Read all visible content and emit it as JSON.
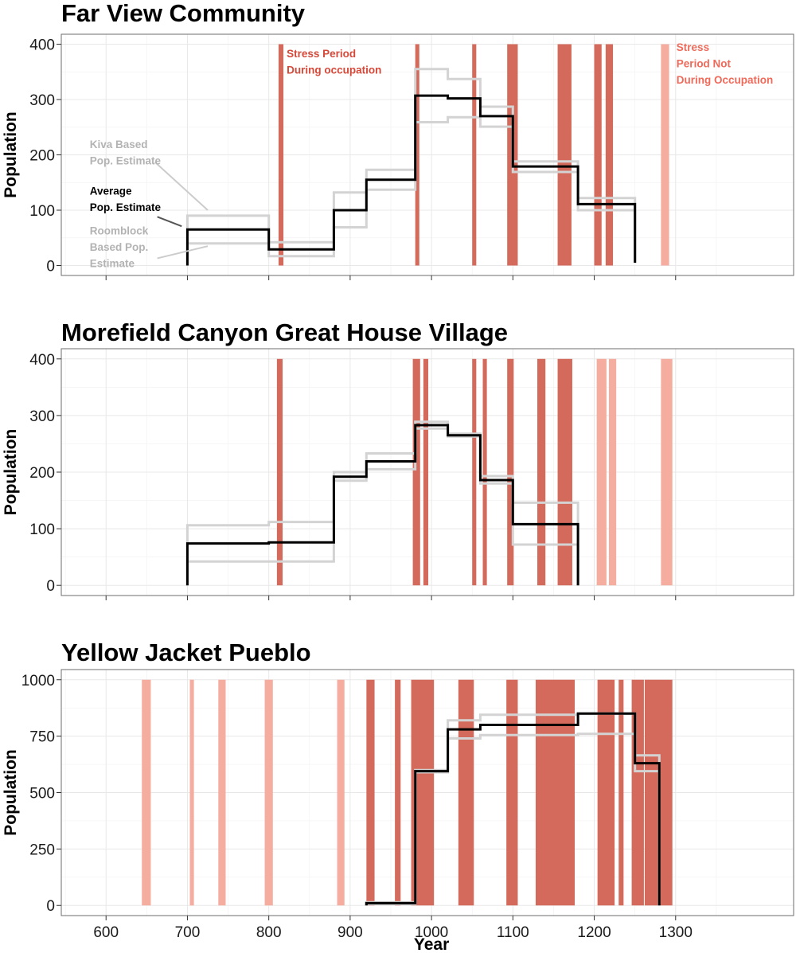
{
  "chart_data": {
    "type": "line",
    "xlabel": "Year",
    "x_ticks": [
      600,
      700,
      800,
      900,
      1000,
      1100,
      1200,
      1300
    ],
    "xlim": [
      545,
      1445
    ],
    "colors": {
      "average": "#000000",
      "estimate": "#d3d3d3",
      "stress_during": "#d46a5b",
      "stress_not": "#f4ad9e",
      "annotation_during": "#d6493a",
      "annotation_not": "#ee6a5a",
      "annotation_gray": "#b3b3b3"
    },
    "panels": [
      {
        "title": "Far View Community",
        "ylabel": "Population",
        "ylim": [
          -18,
          418
        ],
        "yticks": [
          0,
          100,
          200,
          300,
          400
        ],
        "stress_during": [
          [
            812,
            818
          ],
          [
            980,
            985
          ],
          [
            1050,
            1055
          ],
          [
            1093,
            1106
          ],
          [
            1155,
            1172
          ],
          [
            1200,
            1209
          ],
          [
            1214,
            1223
          ]
        ],
        "stress_not": [
          [
            1282,
            1292
          ]
        ],
        "series": [
          {
            "role": "average",
            "x": [
              700,
              700,
              800,
              800,
              880,
              880,
              920,
              920,
              980,
              980,
              1020,
              1020,
              1060,
              1060,
              1100,
              1100,
              1180,
              1180,
              1250,
              1250
            ],
            "y": [
              0,
              65,
              65,
              29,
              29,
              100,
              100,
              155,
              155,
              307,
              307,
              302,
              302,
              270,
              270,
              179,
              179,
              111,
              111,
              5
            ]
          },
          {
            "role": "kiva",
            "x": [
              700,
              700,
              800,
              800,
              880,
              880,
              920,
              920,
              980,
              980,
              1020,
              1020,
              1060,
              1060,
              1100,
              1100,
              1180,
              1180,
              1250,
              1250
            ],
            "y": [
              0,
              90,
              90,
              42,
              42,
              132,
              132,
              173,
              173,
              355,
              355,
              337,
              337,
              287,
              287,
              188,
              188,
              122,
              122,
              5
            ]
          },
          {
            "role": "roomblock",
            "x": [
              700,
              700,
              800,
              800,
              880,
              880,
              920,
              920,
              980,
              980,
              1020,
              1020,
              1060,
              1060,
              1100,
              1100,
              1180,
              1180,
              1250,
              1250
            ],
            "y": [
              0,
              40,
              40,
              17,
              17,
              69,
              69,
              137,
              137,
              259,
              259,
              268,
              268,
              251,
              251,
              169,
              169,
              100,
              100,
              5
            ]
          }
        ],
        "annotations": [
          {
            "lines": [
              "Stress Period",
              "During occupation"
            ],
            "kind": "during",
            "x": 822,
            "y": 376
          },
          {
            "lines": [
              "Stress",
              "Period Not",
              "During Occupation"
            ],
            "kind": "not",
            "x": 1301,
            "y": 388
          },
          {
            "lines": [
              "Kiva Based",
              "Pop. Estimate"
            ],
            "kind": "gray",
            "x": 580,
            "y": 212
          },
          {
            "lines": [
              "Average",
              "Pop. Estimate"
            ],
            "kind": "black",
            "x": 580,
            "y": 128
          },
          {
            "lines": [
              "Roomblock",
              "Based Pop.",
              "Estimate"
            ],
            "kind": "gray",
            "x": 580,
            "y": 56
          }
        ],
        "leaders": [
          {
            "kind": "gray",
            "from": [
              660,
              187
            ],
            "to": [
              725,
              100
            ]
          },
          {
            "kind": "black",
            "from": [
              663,
              88
            ],
            "to": [
              693,
              71
            ]
          },
          {
            "kind": "gray",
            "from": [
              663,
              13
            ],
            "to": [
              725,
              35
            ]
          }
        ]
      },
      {
        "title": "Morefield Canyon Great House Village",
        "ylabel": "Population",
        "ylim": [
          -18,
          418
        ],
        "yticks": [
          0,
          100,
          200,
          300,
          400
        ],
        "stress_during": [
          [
            810,
            817
          ],
          [
            977,
            986
          ],
          [
            990,
            996
          ],
          [
            1050,
            1055
          ],
          [
            1063,
            1068
          ],
          [
            1093,
            1101
          ],
          [
            1130,
            1140
          ],
          [
            1155,
            1173
          ]
        ],
        "stress_not": [
          [
            1203,
            1215
          ],
          [
            1218,
            1227
          ],
          [
            1282,
            1296
          ]
        ],
        "series": [
          {
            "role": "average",
            "x": [
              700,
              700,
              800,
              800,
              880,
              880,
              920,
              920,
              980,
              980,
              1020,
              1020,
              1060,
              1060,
              1100,
              1100,
              1180,
              1180
            ],
            "y": [
              0,
              74,
              74,
              76,
              76,
              192,
              192,
              219,
              219,
              283,
              283,
              265,
              265,
              186,
              186,
              108,
              108,
              0
            ]
          },
          {
            "role": "kiva",
            "x": [
              700,
              700,
              800,
              800,
              880,
              880,
              920,
              920,
              980,
              980,
              1020,
              1020,
              1060,
              1060,
              1100,
              1100,
              1180,
              1180
            ],
            "y": [
              0,
              106,
              106,
              112,
              112,
              200,
              200,
              233,
              233,
              289,
              289,
              268,
              268,
              193,
              193,
              146,
              146,
              0
            ]
          },
          {
            "role": "roomblock",
            "x": [
              700,
              700,
              800,
              800,
              880,
              880,
              920,
              920,
              980,
              980,
              1020,
              1020,
              1060,
              1060,
              1100,
              1100,
              1180,
              1180
            ],
            "y": [
              0,
              42,
              42,
              42,
              42,
              185,
              185,
              205,
              205,
              277,
              277,
              263,
              263,
              180,
              180,
              72,
              72,
              0
            ]
          }
        ],
        "annotations": [],
        "leaders": []
      },
      {
        "title": "Yellow Jacket Pueblo",
        "ylabel": "Population",
        "ylim": [
          -45,
          1045
        ],
        "yticks": [
          0,
          250,
          500,
          750,
          1000
        ],
        "stress_during": [
          [
            920,
            930
          ],
          [
            955,
            962
          ],
          [
            975,
            1003
          ],
          [
            1033,
            1052
          ],
          [
            1092,
            1106
          ],
          [
            1128,
            1176
          ],
          [
            1204,
            1225
          ],
          [
            1230,
            1236
          ],
          [
            1246,
            1261
          ],
          [
            1262,
            1296
          ]
        ],
        "stress_not": [
          [
            644,
            655
          ],
          [
            703,
            708
          ],
          [
            738,
            747
          ],
          [
            795,
            805
          ],
          [
            884,
            893
          ]
        ],
        "series": [
          {
            "role": "average",
            "x": [
              920,
              920,
              980,
              980,
              1020,
              1020,
              1060,
              1060,
              1180,
              1180,
              1250,
              1250,
              1280,
              1280
            ],
            "y": [
              0,
              10,
              10,
              595,
              595,
              780,
              780,
              800,
              800,
              850,
              850,
              630,
              630,
              0
            ]
          },
          {
            "role": "kiva",
            "x": [
              920,
              920,
              980,
              980,
              1020,
              1020,
              1060,
              1060,
              1180,
              1180,
              1250,
              1250,
              1280,
              1280
            ],
            "y": [
              0,
              14,
              14,
              600,
              600,
              820,
              820,
              845,
              845,
              850,
              850,
              665,
              665,
              0
            ]
          },
          {
            "role": "roomblock",
            "x": [
              920,
              920,
              980,
              980,
              1020,
              1020,
              1060,
              1060,
              1180,
              1180,
              1250,
              1250,
              1280,
              1280
            ],
            "y": [
              0,
              6,
              6,
              590,
              590,
              740,
              740,
              755,
              755,
              760,
              760,
              595,
              595,
              0
            ]
          }
        ],
        "annotations": [],
        "leaders": []
      }
    ]
  }
}
